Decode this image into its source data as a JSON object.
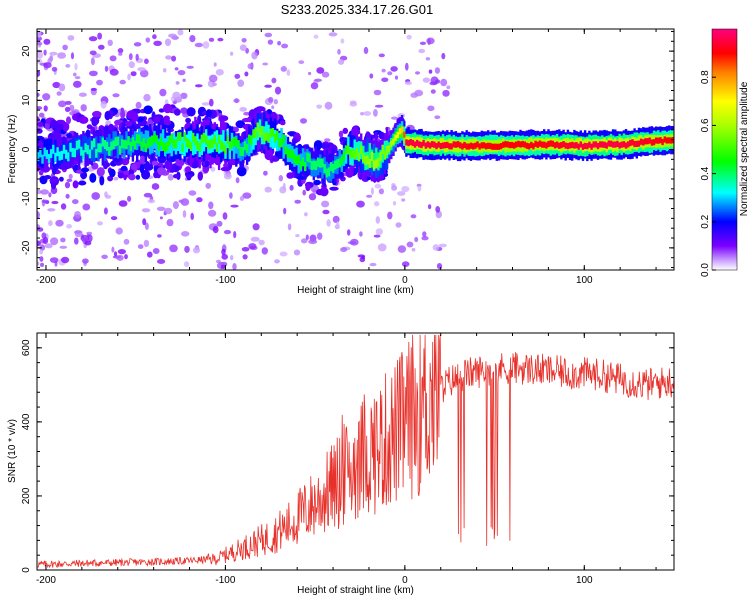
{
  "title": "S233.2025.334.17.26.G01",
  "chart_data": [
    {
      "type": "heatmap",
      "xlabel": "Height of straight line (km)",
      "ylabel": "Frequency (Hz)",
      "xlim": [
        -205,
        150
      ],
      "ylim": [
        -24.5,
        24.5
      ],
      "xticks": [
        -200,
        -100,
        0,
        100
      ],
      "xtick_labels": [
        "-200",
        "-100",
        "0",
        "100"
      ],
      "yticks": [
        -20,
        -10,
        0,
        10,
        20
      ],
      "ytick_labels": [
        "-20",
        "-10",
        "0",
        "10",
        "20"
      ],
      "colorbar": {
        "label": "Normalized spectral amplitude",
        "range": [
          0.0,
          1.0
        ],
        "ticks": [
          0.0,
          0.2,
          0.4,
          0.6,
          0.8
        ],
        "tick_labels": [
          "0.0",
          "0.2",
          "0.4",
          "0.6",
          "0.8"
        ]
      },
      "ridge": {
        "x": [
          -205,
          -180,
          -160,
          -140,
          -120,
          -100,
          -90,
          -82,
          -75,
          -68,
          -60,
          -52,
          -45,
          -38,
          -32,
          -25,
          -18,
          -12,
          -8,
          -5,
          -2,
          0,
          10,
          30,
          50,
          80,
          100,
          120,
          150
        ],
        "freq": [
          -1,
          0,
          1,
          1.5,
          1.5,
          1,
          0,
          4,
          3,
          1,
          -2,
          -3,
          -4,
          -3,
          0,
          -1,
          -2,
          -1,
          1,
          3,
          4,
          1.5,
          1,
          0.8,
          0.8,
          1,
          0.8,
          1,
          2
        ],
        "amplitude": [
          0.3,
          0.35,
          0.4,
          0.45,
          0.5,
          0.5,
          0.4,
          0.55,
          0.5,
          0.45,
          0.45,
          0.4,
          0.4,
          0.4,
          0.5,
          0.55,
          0.6,
          0.55,
          0.6,
          0.7,
          0.75,
          0.95,
          0.95,
          0.92,
          0.9,
          0.92,
          0.95,
          0.95,
          0.9
        ]
      }
    },
    {
      "type": "line",
      "xlabel": "Height of straight line (km)",
      "ylabel": "SNR (10 * v/v)",
      "xlim": [
        -205,
        150
      ],
      "ylim": [
        0,
        640
      ],
      "xticks": [
        -200,
        -100,
        0,
        100
      ],
      "xtick_labels": [
        "-200",
        "-100",
        "0",
        "100"
      ],
      "yticks": [
        0,
        200,
        400,
        600
      ],
      "ytick_labels": [
        "0",
        "200",
        "400",
        "600"
      ],
      "series": [
        {
          "name": "SNR",
          "color": "#e8302a",
          "x": [
            -205,
            -180,
            -160,
            -140,
            -120,
            -105,
            -95,
            -85,
            -75,
            -65,
            -55,
            -45,
            -35,
            -25,
            -15,
            -5,
            5,
            15,
            25,
            35,
            45,
            55,
            65,
            75,
            85,
            95,
            105,
            115,
            125,
            135,
            150
          ],
          "y": [
            15,
            18,
            20,
            22,
            25,
            30,
            50,
            70,
            90,
            120,
            160,
            200,
            250,
            300,
            330,
            370,
            420,
            470,
            510,
            530,
            540,
            545,
            545,
            540,
            535,
            530,
            530,
            520,
            510,
            500,
            510
          ]
        }
      ]
    }
  ]
}
